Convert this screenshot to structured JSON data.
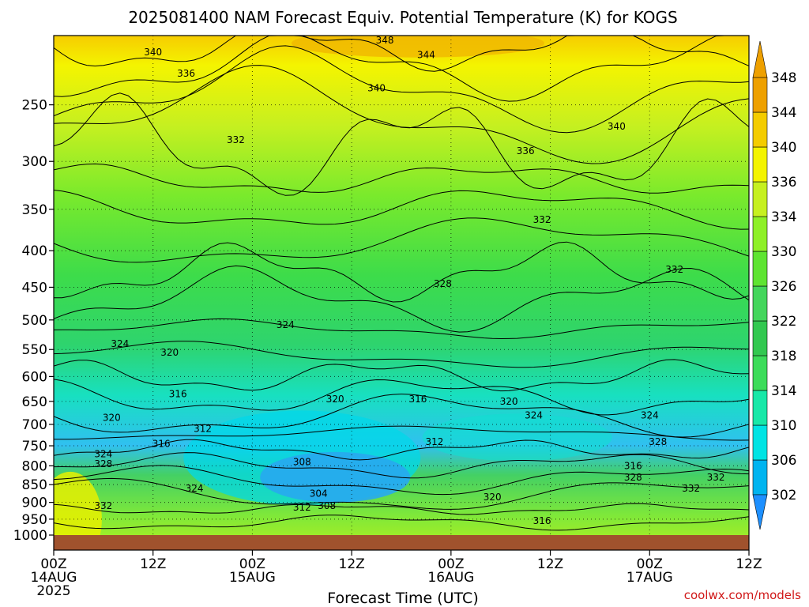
{
  "chart_data": {
    "type": "heatmap",
    "title": "2025081400 NAM Forecast Equiv. Potential Temperature (K) for KOGS",
    "xlabel": "Forecast Time (UTC)",
    "credit": "coolwx.com/models",
    "x_range_hours": [
      0,
      84
    ],
    "y_axis": {
      "scale": "log-pressure",
      "range": [
        1000,
        200
      ],
      "ticks": [
        250,
        300,
        350,
        400,
        450,
        500,
        550,
        600,
        650,
        700,
        750,
        800,
        850,
        900,
        950,
        1000
      ]
    },
    "x_ticks": [
      {
        "hour": 0,
        "labels": [
          "00Z",
          "14AUG",
          "2025"
        ]
      },
      {
        "hour": 12,
        "labels": [
          "12Z"
        ]
      },
      {
        "hour": 24,
        "labels": [
          "00Z",
          "15AUG"
        ]
      },
      {
        "hour": 36,
        "labels": [
          "12Z"
        ]
      },
      {
        "hour": 48,
        "labels": [
          "00Z",
          "16AUG"
        ]
      },
      {
        "hour": 60,
        "labels": [
          "12Z"
        ]
      },
      {
        "hour": 72,
        "labels": [
          "00Z",
          "17AUG"
        ]
      },
      {
        "hour": 84,
        "labels": [
          "12Z"
        ]
      }
    ],
    "colorbar": {
      "levels": [
        302,
        306,
        310,
        314,
        318,
        322,
        326,
        330,
        334,
        336,
        340,
        344,
        348
      ],
      "colors": [
        "#1e90ff",
        "#00b4f0",
        "#00e4e4",
        "#18e8a8",
        "#3cdc5a",
        "#32c850",
        "#44d65c",
        "#5ee432",
        "#8ef028",
        "#c6f020",
        "#f4f400",
        "#f4cc00",
        "#eea000"
      ]
    },
    "ground_color": "#a0522d",
    "grid": true,
    "contour_labels": [
      {
        "value": 348,
        "hour": 40,
        "p": 203
      },
      {
        "value": 344,
        "hour": 45,
        "p": 213
      },
      {
        "value": 340,
        "hour": 12,
        "p": 211
      },
      {
        "value": 336,
        "hour": 16,
        "p": 226
      },
      {
        "value": 340,
        "hour": 39,
        "p": 237
      },
      {
        "value": 340,
        "hour": 68,
        "p": 268
      },
      {
        "value": 332,
        "hour": 22,
        "p": 280
      },
      {
        "value": 336,
        "hour": 57,
        "p": 290
      },
      {
        "value": 332,
        "hour": 59,
        "p": 362
      },
      {
        "value": 332,
        "hour": 75,
        "p": 425
      },
      {
        "value": 328,
        "hour": 47,
        "p": 445
      },
      {
        "value": 324,
        "hour": 28,
        "p": 508
      },
      {
        "value": 324,
        "hour": 8,
        "p": 540
      },
      {
        "value": 320,
        "hour": 14,
        "p": 555
      },
      {
        "value": 316,
        "hour": 15,
        "p": 635
      },
      {
        "value": 320,
        "hour": 34,
        "p": 645
      },
      {
        "value": 316,
        "hour": 44,
        "p": 645
      },
      {
        "value": 320,
        "hour": 55,
        "p": 650
      },
      {
        "value": 324,
        "hour": 58,
        "p": 680
      },
      {
        "value": 324,
        "hour": 72,
        "p": 680
      },
      {
        "value": 312,
        "hour": 18,
        "p": 710
      },
      {
        "value": 320,
        "hour": 7,
        "p": 685
      },
      {
        "value": 312,
        "hour": 46,
        "p": 740
      },
      {
        "value": 316,
        "hour": 13,
        "p": 745
      },
      {
        "value": 328,
        "hour": 73,
        "p": 740
      },
      {
        "value": 324,
        "hour": 6,
        "p": 770
      },
      {
        "value": 308,
        "hour": 30,
        "p": 790
      },
      {
        "value": 328,
        "hour": 6,
        "p": 795
      },
      {
        "value": 316,
        "hour": 70,
        "p": 800
      },
      {
        "value": 328,
        "hour": 70,
        "p": 830
      },
      {
        "value": 332,
        "hour": 80,
        "p": 830
      },
      {
        "value": 332,
        "hour": 77,
        "p": 860
      },
      {
        "value": 324,
        "hour": 17,
        "p": 860
      },
      {
        "value": 304,
        "hour": 32,
        "p": 875
      },
      {
        "value": 320,
        "hour": 53,
        "p": 885
      },
      {
        "value": 312,
        "hour": 30,
        "p": 915
      },
      {
        "value": 308,
        "hour": 33,
        "p": 910
      },
      {
        "value": 332,
        "hour": 6,
        "p": 910
      },
      {
        "value": 316,
        "hour": 59,
        "p": 955
      }
    ]
  }
}
